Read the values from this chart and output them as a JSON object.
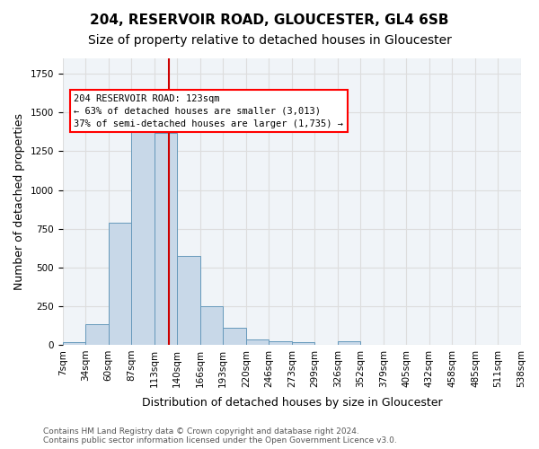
{
  "title1": "204, RESERVOIR ROAD, GLOUCESTER, GL4 6SB",
  "title2": "Size of property relative to detached houses in Gloucester",
  "xlabel": "Distribution of detached houses by size in Gloucester",
  "ylabel": "Number of detached properties",
  "bin_labels": [
    "7sqm",
    "34sqm",
    "60sqm",
    "87sqm",
    "113sqm",
    "140sqm",
    "166sqm",
    "193sqm",
    "220sqm",
    "246sqm",
    "273sqm",
    "299sqm",
    "326sqm",
    "352sqm",
    "379sqm",
    "405sqm",
    "432sqm",
    "458sqm",
    "485sqm",
    "511sqm",
    "538sqm"
  ],
  "bar_values": [
    18,
    135,
    790,
    1480,
    1370,
    575,
    248,
    112,
    35,
    25,
    18,
    0,
    20,
    0,
    0,
    0,
    0,
    0,
    0,
    0
  ],
  "bar_color": "#c8d8e8",
  "bar_edge_color": "#6699bb",
  "property_line_x": 4.63,
  "annotation_text1": "204 RESERVOIR ROAD: 123sqm",
  "annotation_text2": "← 63% of detached houses are smaller (3,013)",
  "annotation_text3": "37% of semi-detached houses are larger (1,735) →",
  "annotation_box_color": "white",
  "annotation_box_edge_color": "red",
  "vline_color": "#cc0000",
  "grid_color": "#dddddd",
  "background_color": "#f0f4f8",
  "footer1": "Contains HM Land Registry data © Crown copyright and database right 2024.",
  "footer2": "Contains public sector information licensed under the Open Government Licence v3.0.",
  "ylim": [
    0,
    1850
  ],
  "title1_fontsize": 11,
  "title2_fontsize": 10,
  "ylabel_fontsize": 9,
  "xlabel_fontsize": 9,
  "tick_fontsize": 7.5
}
